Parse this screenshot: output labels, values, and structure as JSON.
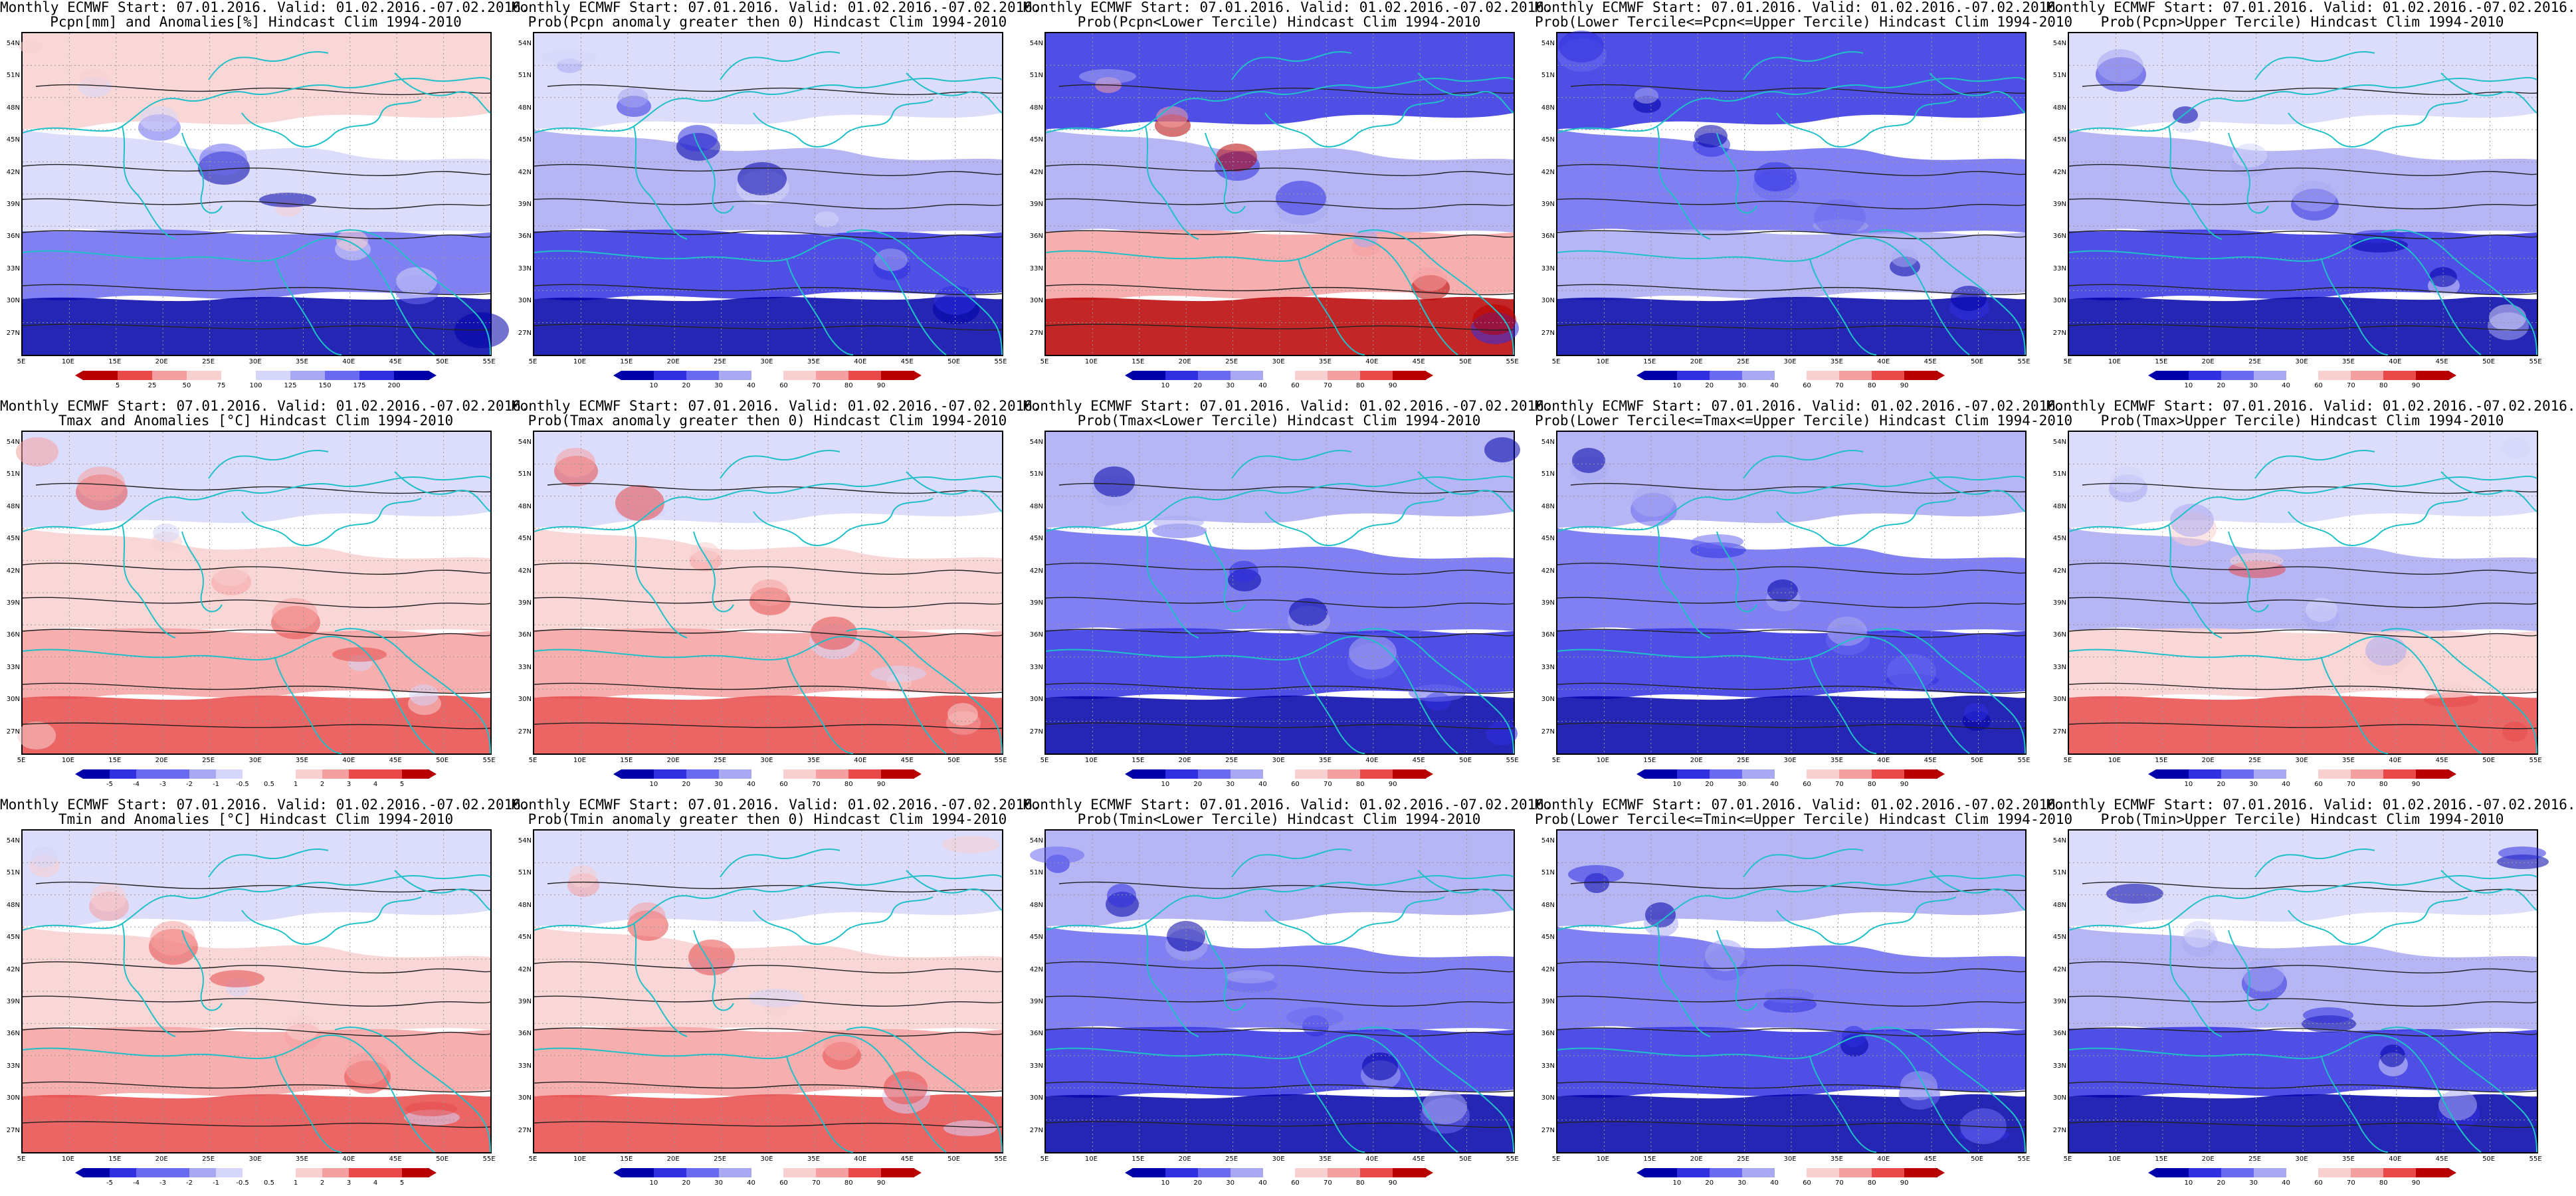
{
  "colors": {
    "coast": "#20c0c8",
    "contour": "#222222",
    "grid": "#999999",
    "dark_blue": "#0000a8",
    "blue": "#3030e0",
    "mid_blue": "#6a6af0",
    "light_blue": "#a9a9f3",
    "pale_blue": "#d6d6fa",
    "pale_red": "#f8d0d0",
    "light_red": "#f5a0a0",
    "red": "#e84a4a",
    "dark_red": "#b80000"
  },
  "lat_labels": [
    "54N",
    "51N",
    "48N",
    "45N",
    "42N",
    "39N",
    "36N",
    "33N",
    "30N",
    "27N"
  ],
  "lon_labels": [
    "5E",
    "10E",
    "15E",
    "20E",
    "25E",
    "30E",
    "35E",
    "40E",
    "45E",
    "50E",
    "55E"
  ],
  "panels": [
    {
      "id": "pcpn-anom",
      "line1": "Monthly ECMWF Start: 07.01.2016. Valid: 01.02.2016.-07.02.2016.",
      "line2": "Pcpn[mm] and Anomalies[%] Hindcast Clim 1994-2010",
      "scale": "div",
      "fill": [
        "pale_red",
        "pale_blue",
        "mid_blue",
        "dark_blue"
      ],
      "cbar_ticks": [
        "5",
        "25",
        "50",
        "75",
        "100",
        "125",
        "150",
        "175",
        "200"
      ]
    },
    {
      "id": "pcpn-prob-pos",
      "line1": "Monthly ECMWF Start: 07.01.2016. Valid: 01.02.2016.-07.02.2016.",
      "line2": "Prob(Pcpn anomaly greater then 0) Hindcast Clim 1994-2010",
      "scale": "prob",
      "fill": [
        "pale_blue",
        "light_blue",
        "blue",
        "dark_blue"
      ],
      "cbar_ticks": [
        "10",
        "20",
        "30",
        "40",
        "60",
        "70",
        "80",
        "90"
      ]
    },
    {
      "id": "pcpn-lower",
      "line1": "Monthly ECMWF Start: 07.01.2016. Valid: 01.02.2016.-07.02.2016.",
      "line2": "Prob(Pcpn<Lower Tercile) Hindcast Clim 1994-2010",
      "scale": "prob",
      "fill": [
        "blue",
        "light_blue",
        "light_red",
        "dark_red"
      ],
      "cbar_ticks": [
        "10",
        "20",
        "30",
        "40",
        "60",
        "70",
        "80",
        "90"
      ]
    },
    {
      "id": "pcpn-middle",
      "line1": "Monthly ECMWF Start: 07.01.2016. Valid: 01.02.2016.-07.02.2016.",
      "line2": "Prob(Lower Tercile<=Pcpn<=Upper Tercile) Hindcast Clim 1994-2010",
      "scale": "prob",
      "fill": [
        "blue",
        "mid_blue",
        "light_blue",
        "dark_blue"
      ],
      "cbar_ticks": [
        "10",
        "20",
        "30",
        "40",
        "60",
        "70",
        "80",
        "90"
      ]
    },
    {
      "id": "pcpn-upper",
      "line1": "Monthly ECMWF Start: 07.01.2016. Valid: 01.02.2016.-07.02.2016.",
      "line2": "Prob(Pcpn>Upper Tercile) Hindcast Clim 1994-2010",
      "scale": "prob",
      "fill": [
        "pale_blue",
        "light_blue",
        "blue",
        "dark_blue"
      ],
      "cbar_ticks": [
        "10",
        "20",
        "30",
        "40",
        "60",
        "70",
        "80",
        "90"
      ]
    },
    {
      "id": "tmax-anom",
      "line1": "Monthly ECMWF Start: 07.01.2016. Valid: 01.02.2016.-07.02.2016.",
      "line2": "Tmax and Anomalies [°C] Hindcast Clim 1994-2010",
      "scale": "div",
      "fill": [
        "pale_blue",
        "pale_red",
        "light_red",
        "red"
      ],
      "cbar_ticks": [
        "-5",
        "-4",
        "-3",
        "-2",
        "-1",
        "-0.5",
        "0.5",
        "1",
        "2",
        "3",
        "4",
        "5"
      ]
    },
    {
      "id": "tmax-prob-pos",
      "line1": "Monthly ECMWF Start: 07.01.2016. Valid: 01.02.2016.-07.02.2016.",
      "line2": "Prob(Tmax anomaly greater then 0) Hindcast Clim 1994-2010",
      "scale": "prob",
      "fill": [
        "pale_blue",
        "pale_red",
        "light_red",
        "red"
      ],
      "cbar_ticks": [
        "10",
        "20",
        "30",
        "40",
        "60",
        "70",
        "80",
        "90"
      ]
    },
    {
      "id": "tmax-lower",
      "line1": "Monthly ECMWF Start: 07.01.2016. Valid: 01.02.2016.-07.02.2016.",
      "line2": "Prob(Tmax<Lower Tercile) Hindcast Clim 1994-2010",
      "scale": "prob",
      "fill": [
        "light_blue",
        "mid_blue",
        "blue",
        "dark_blue"
      ],
      "cbar_ticks": [
        "10",
        "20",
        "30",
        "40",
        "60",
        "70",
        "80",
        "90"
      ]
    },
    {
      "id": "tmax-middle",
      "line1": "Monthly ECMWF Start: 07.01.2016. Valid: 01.02.2016.-07.02.2016.",
      "line2": "Prob(Lower Tercile<=Tmax<=Upper Tercile) Hindcast Clim 1994-2010",
      "scale": "prob",
      "fill": [
        "light_blue",
        "mid_blue",
        "blue",
        "dark_blue"
      ],
      "cbar_ticks": [
        "10",
        "20",
        "30",
        "40",
        "60",
        "70",
        "80",
        "90"
      ]
    },
    {
      "id": "tmax-upper",
      "line1": "Monthly ECMWF Start: 07.01.2016. Valid: 01.02.2016.-07.02.2016.",
      "line2": "Prob(Tmax>Upper Tercile) Hindcast Clim 1994-2010",
      "scale": "prob",
      "fill": [
        "pale_blue",
        "light_blue",
        "pale_red",
        "red"
      ],
      "cbar_ticks": [
        "10",
        "20",
        "30",
        "40",
        "60",
        "70",
        "80",
        "90"
      ]
    },
    {
      "id": "tmin-anom",
      "line1": "Monthly ECMWF Start: 07.01.2016. Valid: 01.02.2016.-07.02.2016.",
      "line2": "Tmin and Anomalies [°C] Hindcast Clim 1994-2010",
      "scale": "div",
      "fill": [
        "pale_blue",
        "pale_red",
        "light_red",
        "red"
      ],
      "cbar_ticks": [
        "-5",
        "-4",
        "-3",
        "-2",
        "-1",
        "-0.5",
        "0.5",
        "1",
        "2",
        "3",
        "4",
        "5"
      ]
    },
    {
      "id": "tmin-prob-pos",
      "line1": "Monthly ECMWF Start: 07.01.2016. Valid: 01.02.2016.-07.02.2016.",
      "line2": "Prob(Tmin anomaly greater then 0) Hindcast Clim 1994-2010",
      "scale": "prob",
      "fill": [
        "pale_blue",
        "pale_red",
        "light_red",
        "red"
      ],
      "cbar_ticks": [
        "10",
        "20",
        "30",
        "40",
        "60",
        "70",
        "80",
        "90"
      ]
    },
    {
      "id": "tmin-lower",
      "line1": "Monthly ECMWF Start: 07.01.2016. Valid: 01.02.2016.-07.02.2016.",
      "line2": "Prob(Tmin<Lower Tercile) Hindcast Clim 1994-2010",
      "scale": "prob",
      "fill": [
        "light_blue",
        "mid_blue",
        "blue",
        "dark_blue"
      ],
      "cbar_ticks": [
        "10",
        "20",
        "30",
        "40",
        "60",
        "70",
        "80",
        "90"
      ]
    },
    {
      "id": "tmin-middle",
      "line1": "Monthly ECMWF Start: 07.01.2016. Valid: 01.02.2016.-07.02.2016.",
      "line2": "Prob(Lower Tercile<=Tmin<=Upper Tercile) Hindcast Clim 1994-2010",
      "scale": "prob",
      "fill": [
        "light_blue",
        "mid_blue",
        "blue",
        "dark_blue"
      ],
      "cbar_ticks": [
        "10",
        "20",
        "30",
        "40",
        "60",
        "70",
        "80",
        "90"
      ]
    },
    {
      "id": "tmin-upper",
      "line1": "Monthly ECMWF Start: 07.01.2016. Valid: 01.02.2016.-07.02.2016.",
      "line2": "Prob(Tmin>Upper Tercile) Hindcast Clim 1994-2010",
      "scale": "prob",
      "fill": [
        "pale_blue",
        "light_blue",
        "blue",
        "dark_blue"
      ],
      "cbar_ticks": [
        "10",
        "20",
        "30",
        "40",
        "60",
        "70",
        "80",
        "90"
      ]
    }
  ]
}
